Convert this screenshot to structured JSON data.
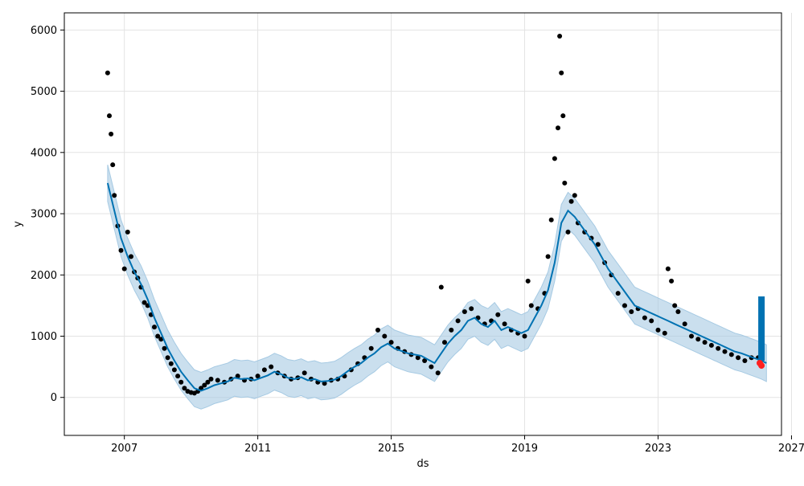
{
  "chart_data": {
    "type": "line",
    "xlabel": "ds",
    "ylabel": "y",
    "xlim": [
      2005.2,
      2026.7
    ],
    "ylim": [
      -620,
      6280
    ],
    "x_ticks": [
      2007,
      2011,
      2015,
      2019,
      2023,
      2027
    ],
    "x_tick_labels": [
      "2007",
      "2011",
      "2015",
      "2019",
      "2023",
      "2027"
    ],
    "y_ticks": [
      0,
      1000,
      2000,
      3000,
      4000,
      5000,
      6000
    ],
    "y_tick_labels": [
      "0",
      "1000",
      "2000",
      "3000",
      "4000",
      "5000",
      "6000"
    ],
    "grid": true,
    "colors": {
      "observed": "#000000",
      "forecast_line": "#0072B2",
      "uncertainty_band": "#A6CAE3",
      "highlight": "#FF2020"
    },
    "forecast": {
      "x": [
        2006.5,
        2006.7,
        2006.9,
        2007.1,
        2007.3,
        2007.5,
        2007.7,
        2007.9,
        2008.1,
        2008.3,
        2008.5,
        2008.7,
        2008.9,
        2009.1,
        2009.3,
        2009.5,
        2009.7,
        2009.9,
        2010.1,
        2010.3,
        2010.5,
        2010.7,
        2010.9,
        2011.1,
        2011.3,
        2011.5,
        2011.7,
        2011.9,
        2012.1,
        2012.3,
        2012.5,
        2012.7,
        2012.9,
        2013.1,
        2013.3,
        2013.5,
        2013.7,
        2013.9,
        2014.1,
        2014.3,
        2014.5,
        2014.7,
        2014.9,
        2015.1,
        2015.3,
        2015.5,
        2015.7,
        2015.9,
        2016.1,
        2016.3,
        2016.5,
        2016.7,
        2016.9,
        2017.1,
        2017.3,
        2017.5,
        2017.7,
        2017.9,
        2018.1,
        2018.3,
        2018.5,
        2018.7,
        2018.9,
        2019.1,
        2019.3,
        2019.5,
        2019.7,
        2019.9,
        2020.1,
        2020.3,
        2020.5,
        2020.7,
        2020.9,
        2021.1,
        2021.3,
        2021.5,
        2021.7,
        2021.9,
        2022.1,
        2022.3,
        2022.5,
        2022.7,
        2022.9,
        2023.1,
        2023.3,
        2023.5,
        2023.7,
        2023.9,
        2024.1,
        2024.3,
        2024.5,
        2024.7,
        2024.9,
        2025.1,
        2025.3,
        2025.5,
        2025.7,
        2025.9,
        2026.1,
        2026.25
      ],
      "yhat": [
        3500,
        3050,
        2600,
        2300,
        2050,
        1850,
        1600,
        1300,
        1050,
        800,
        600,
        420,
        280,
        150,
        110,
        150,
        200,
        230,
        260,
        320,
        300,
        310,
        280,
        320,
        360,
        420,
        380,
        320,
        300,
        330,
        280,
        300,
        260,
        270,
        290,
        350,
        430,
        500,
        560,
        650,
        720,
        820,
        880,
        800,
        760,
        720,
        700,
        680,
        620,
        560,
        720,
        880,
        1000,
        1100,
        1250,
        1300,
        1200,
        1150,
        1250,
        1100,
        1150,
        1100,
        1050,
        1100,
        1300,
        1500,
        1750,
        2200,
        2850,
        3050,
        2950,
        2800,
        2650,
        2500,
        2300,
        2100,
        1950,
        1800,
        1650,
        1500,
        1450,
        1400,
        1350,
        1300,
        1250,
        1200,
        1150,
        1100,
        1050,
        1000,
        950,
        900,
        850,
        800,
        750,
        720,
        680,
        640,
        600,
        560
      ],
      "lower": [
        3200,
        2750,
        2300,
        2000,
        1750,
        1550,
        1300,
        1000,
        750,
        500,
        300,
        120,
        -20,
        -150,
        -190,
        -150,
        -100,
        -70,
        -40,
        20,
        0,
        10,
        -20,
        20,
        60,
        120,
        80,
        20,
        0,
        30,
        -20,
        0,
        -40,
        -30,
        -10,
        50,
        130,
        200,
        260,
        350,
        420,
        520,
        580,
        500,
        460,
        420,
        400,
        380,
        320,
        260,
        420,
        580,
        700,
        800,
        950,
        1000,
        900,
        850,
        950,
        800,
        850,
        800,
        750,
        800,
        1000,
        1200,
        1450,
        1900,
        2550,
        2750,
        2650,
        2500,
        2350,
        2200,
        2000,
        1800,
        1650,
        1500,
        1350,
        1200,
        1150,
        1100,
        1050,
        1000,
        950,
        900,
        850,
        800,
        750,
        700,
        650,
        600,
        550,
        500,
        450,
        420,
        380,
        340,
        300,
        260
      ],
      "upper": [
        3800,
        3350,
        2900,
        2600,
        2350,
        2150,
        1900,
        1600,
        1350,
        1100,
        900,
        720,
        580,
        450,
        410,
        450,
        500,
        530,
        560,
        620,
        600,
        610,
        580,
        620,
        660,
        720,
        680,
        620,
        600,
        630,
        580,
        600,
        560,
        570,
        590,
        650,
        730,
        800,
        860,
        950,
        1020,
        1120,
        1180,
        1100,
        1060,
        1020,
        1000,
        980,
        920,
        860,
        1020,
        1180,
        1300,
        1400,
        1550,
        1600,
        1500,
        1450,
        1550,
        1400,
        1450,
        1400,
        1350,
        1400,
        1600,
        1800,
        2050,
        2500,
        3150,
        3350,
        3250,
        3100,
        2950,
        2800,
        2600,
        2400,
        2250,
        2100,
        1950,
        1800,
        1750,
        1700,
        1650,
        1600,
        1550,
        1500,
        1450,
        1400,
        1350,
        1300,
        1250,
        1200,
        1150,
        1100,
        1050,
        1020,
        980,
        940,
        900,
        860
      ]
    },
    "forecast_bar": {
      "x": 2026.1,
      "y_range": [
        600,
        1650
      ]
    },
    "observed": {
      "x": [
        2006.5,
        2006.55,
        2006.6,
        2006.65,
        2006.7,
        2006.8,
        2006.9,
        2007.0,
        2007.1,
        2007.2,
        2007.3,
        2007.4,
        2007.5,
        2007.6,
        2007.7,
        2007.8,
        2007.9,
        2008.0,
        2008.1,
        2008.2,
        2008.3,
        2008.4,
        2008.5,
        2008.6,
        2008.7,
        2008.8,
        2008.9,
        2009.0,
        2009.1,
        2009.2,
        2009.3,
        2009.4,
        2009.5,
        2009.6,
        2009.8,
        2010.0,
        2010.2,
        2010.4,
        2010.6,
        2010.8,
        2011.0,
        2011.2,
        2011.4,
        2011.6,
        2011.8,
        2012.0,
        2012.2,
        2012.4,
        2012.6,
        2012.8,
        2013.0,
        2013.2,
        2013.4,
        2013.6,
        2013.8,
        2014.0,
        2014.2,
        2014.4,
        2014.6,
        2014.8,
        2015.0,
        2015.2,
        2015.4,
        2015.6,
        2015.8,
        2016.0,
        2016.2,
        2016.4,
        2016.5,
        2016.6,
        2016.8,
        2017.0,
        2017.2,
        2017.4,
        2017.6,
        2017.8,
        2018.0,
        2018.2,
        2018.4,
        2018.6,
        2018.8,
        2019.0,
        2019.1,
        2019.2,
        2019.4,
        2019.6,
        2019.7,
        2019.8,
        2019.9,
        2020.0,
        2020.05,
        2020.1,
        2020.15,
        2020.2,
        2020.3,
        2020.4,
        2020.5,
        2020.6,
        2020.8,
        2021.0,
        2021.2,
        2021.4,
        2021.6,
        2021.8,
        2022.0,
        2022.2,
        2022.4,
        2022.6,
        2022.8,
        2023.0,
        2023.2,
        2023.3,
        2023.4,
        2023.5,
        2023.6,
        2023.8,
        2024.0,
        2024.2,
        2024.4,
        2024.6,
        2024.8,
        2025.0,
        2025.2,
        2025.4,
        2025.6,
        2025.8,
        2026.0
      ],
      "y": [
        5300,
        4600,
        4300,
        3800,
        3300,
        2800,
        2400,
        2100,
        2700,
        2300,
        2050,
        1950,
        1800,
        1550,
        1500,
        1350,
        1150,
        1000,
        950,
        800,
        650,
        550,
        450,
        350,
        250,
        150,
        100,
        80,
        70,
        100,
        150,
        200,
        250,
        300,
        280,
        250,
        300,
        350,
        280,
        300,
        350,
        450,
        500,
        400,
        350,
        300,
        320,
        400,
        300,
        250,
        230,
        280,
        300,
        350,
        450,
        550,
        650,
        800,
        1100,
        1000,
        900,
        800,
        750,
        700,
        650,
        600,
        500,
        400,
        1800,
        900,
        1100,
        1250,
        1400,
        1450,
        1300,
        1200,
        1250,
        1350,
        1200,
        1100,
        1050,
        1000,
        1900,
        1500,
        1450,
        1700,
        2300,
        2900,
        3900,
        4400,
        5900,
        5300,
        4600,
        3500,
        2700,
        3200,
        3300,
        2850,
        2700,
        2600,
        2500,
        2200,
        2000,
        1700,
        1500,
        1400,
        1450,
        1300,
        1250,
        1100,
        1050,
        2100,
        1900,
        1500,
        1400,
        1200,
        1000,
        950,
        900,
        850,
        800,
        750,
        700,
        650,
        600,
        650,
        650
      ]
    },
    "highlight": {
      "x": [
        2026.05,
        2026.1
      ],
      "y": [
        560,
        520
      ]
    }
  }
}
